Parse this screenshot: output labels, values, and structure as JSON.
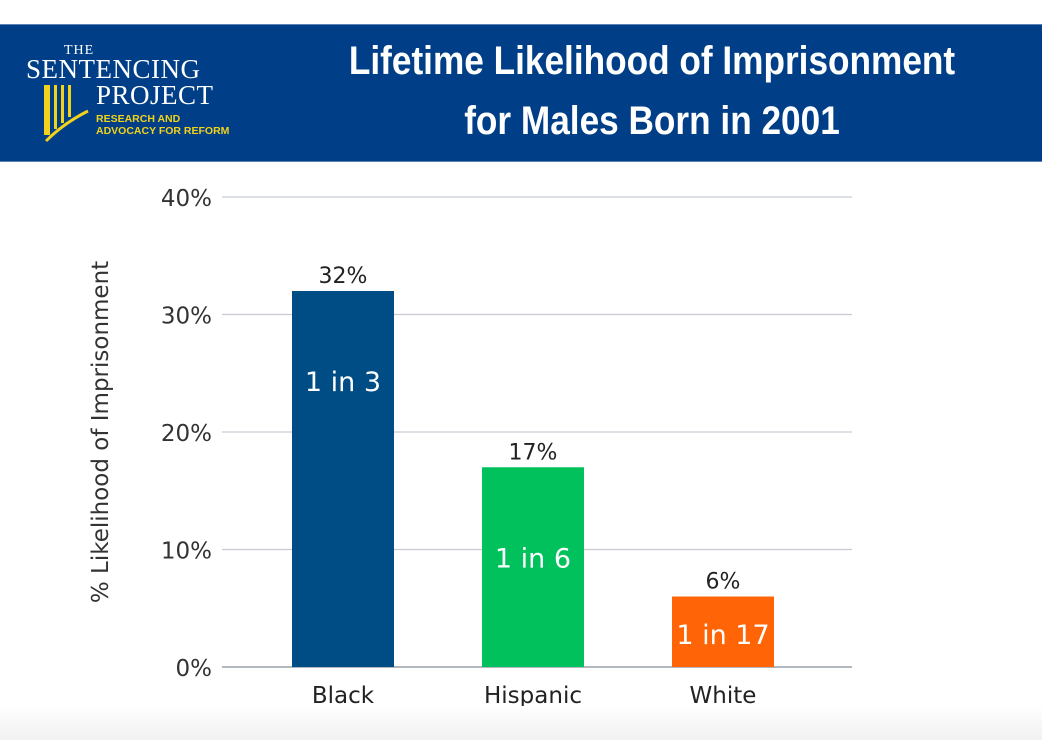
{
  "header": {
    "logo": {
      "the": "THE",
      "sentencing": "SENTENCING",
      "project": "PROJECT",
      "tagline_line1": "RESEARCH AND",
      "tagline_line2": "ADVOCACY FOR REFORM"
    },
    "title_line1": "Lifetime Likelihood of Imprisonment",
    "title_line2": "for Males Born in 2001"
  },
  "colors": {
    "banner": "#003f87",
    "logo_accent": "#f2d21b",
    "black_bar": "#004c84",
    "hispanic_bar": "#00c15c",
    "white_bar": "#ff6406",
    "gridline": "#c8ccd2"
  },
  "chart_data": {
    "type": "bar",
    "title": "Lifetime Likelihood of Imprisonment for Males Born in 2001",
    "xlabel": "",
    "ylabel": "% Likelihood of Imprisonment",
    "ylim": [
      0,
      40
    ],
    "yticks": [
      0,
      10,
      20,
      30,
      40
    ],
    "ytick_labels": [
      "0%",
      "10%",
      "20%",
      "30%",
      "40%"
    ],
    "grid": true,
    "legend": "none",
    "categories": [
      "Black",
      "Hispanic",
      "White"
    ],
    "values": [
      32,
      17,
      6
    ],
    "value_labels": [
      "32%",
      "17%",
      "6%"
    ],
    "inner_labels": [
      "1 in 3",
      "1 in 6",
      "1 in 17"
    ],
    "bar_colors": [
      "#004c84",
      "#00c15c",
      "#ff6406"
    ]
  }
}
